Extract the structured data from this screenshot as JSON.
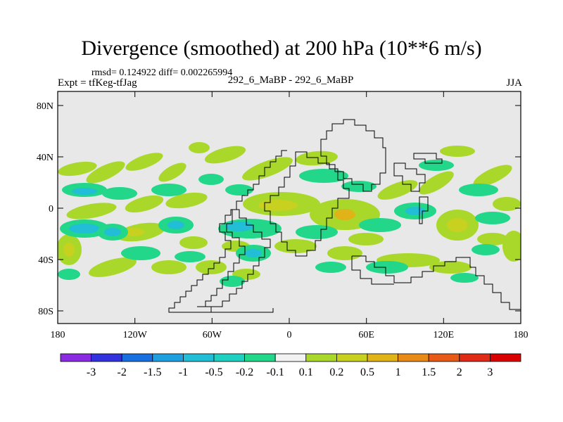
{
  "title": "Divergence (smoothed) at 200 hPa (10**6 m/s)",
  "stats": "rmsd= 0.124922 diff= 0.002265994",
  "left_label": "Expt = tfKeg-tfJag",
  "center_label": "292_6_MaBP - 292_6_MaBP",
  "right_label": "JJA",
  "lat_ticks": [
    "80N",
    "40N",
    "0",
    "40S",
    "80S"
  ],
  "lon_ticks": [
    "180",
    "120W",
    "60W",
    "0",
    "60E",
    "120E",
    "180"
  ],
  "colorbar": {
    "labels": [
      "-3",
      "-2",
      "-1.5",
      "-1",
      "-0.5",
      "-0.2",
      "-0.1",
      "0.1",
      "0.2",
      "0.5",
      "1",
      "1.5",
      "2",
      "3"
    ],
    "colors": [
      "#8a2be2",
      "#3333dd",
      "#1a6fe0",
      "#1e9fe0",
      "#22bdd6",
      "#1fd0c0",
      "#22d68a",
      "#f2f2f2",
      "#a9d82a",
      "#c8d020",
      "#e0b418",
      "#e88a18",
      "#e85a18",
      "#e02a18",
      "#d80000"
    ]
  },
  "colors": {
    "land_bg": "#e8e8e8",
    "pos_weak": "#a9d82a",
    "pos_mid": "#c8d020",
    "neg_weak": "#22d68a",
    "neg_mid": "#22bdd6"
  }
}
